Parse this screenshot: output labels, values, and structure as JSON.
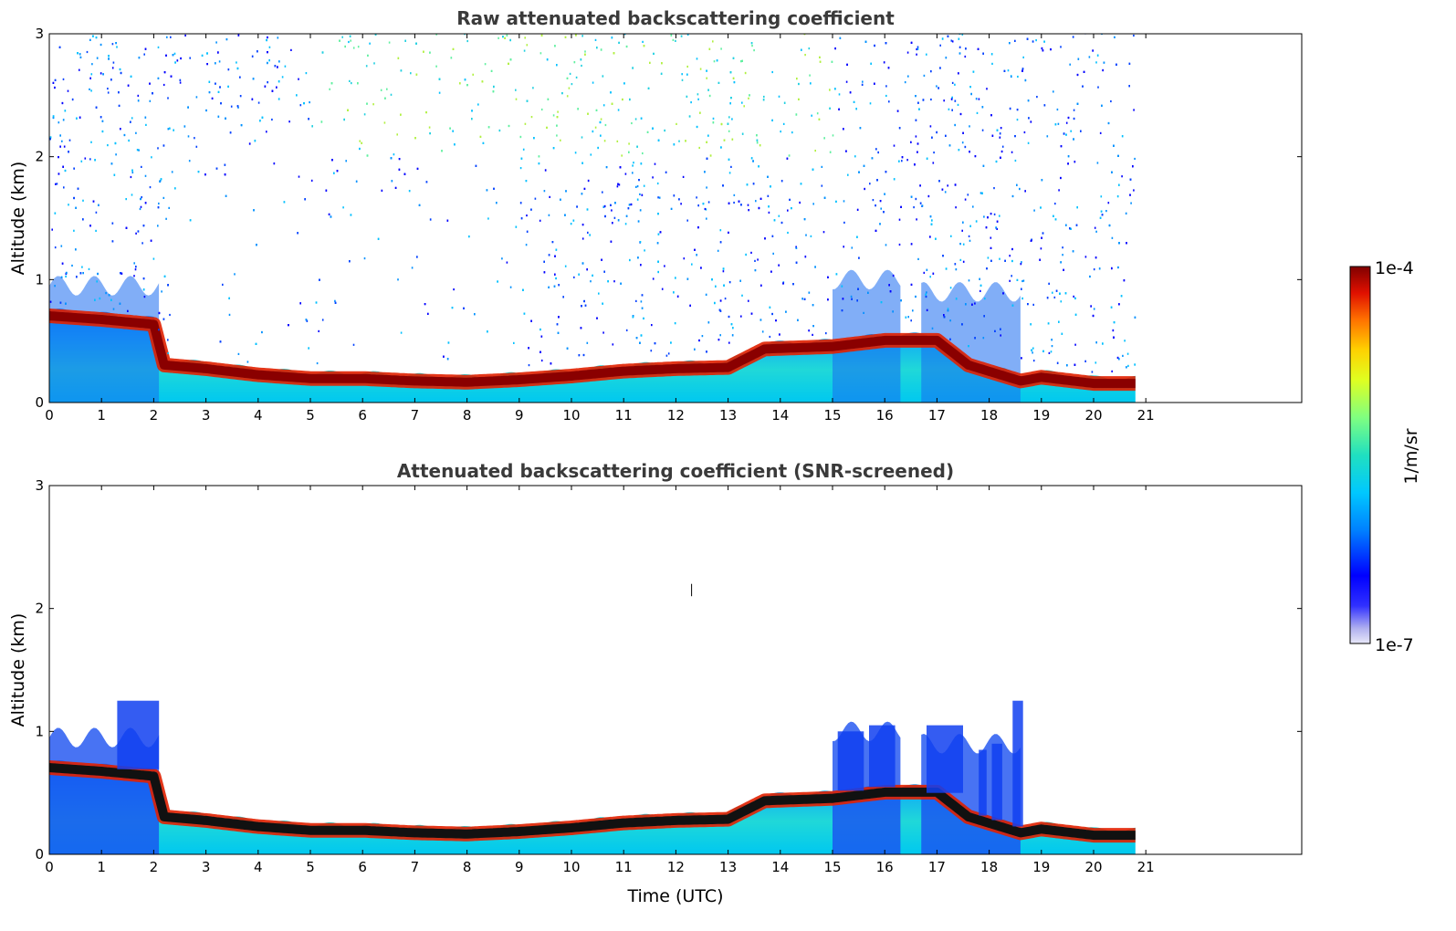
{
  "chart_data": [
    {
      "type": "heatmap",
      "title": "Raw attenuated backscattering coefficient",
      "xlabel": "",
      "ylabel": "Altitude (km)",
      "xlim": [
        0,
        24
      ],
      "ylim": [
        0,
        3
      ],
      "x_ticks": [
        "0",
        "1",
        "2",
        "3",
        "4",
        "5",
        "6",
        "7",
        "8",
        "9",
        "10",
        "11",
        "12",
        "13",
        "14",
        "15",
        "16",
        "17",
        "18",
        "19",
        "20",
        "21"
      ],
      "y_ticks": [
        "0",
        "1",
        "2",
        "3"
      ],
      "data_end_time": 20.8,
      "aerosol_layer_top_km": [
        {
          "t": 0,
          "z": 0.75
        },
        {
          "t": 1,
          "z": 0.72
        },
        {
          "t": 2.0,
          "z": 0.68
        },
        {
          "t": 2.2,
          "z": 0.35
        },
        {
          "t": 3,
          "z": 0.32
        },
        {
          "t": 4,
          "z": 0.27
        },
        {
          "t": 5,
          "z": 0.24
        },
        {
          "t": 6,
          "z": 0.24
        },
        {
          "t": 7,
          "z": 0.22
        },
        {
          "t": 8,
          "z": 0.21
        },
        {
          "t": 9,
          "z": 0.23
        },
        {
          "t": 10,
          "z": 0.26
        },
        {
          "t": 11,
          "z": 0.3
        },
        {
          "t": 12,
          "z": 0.32
        },
        {
          "t": 13,
          "z": 0.33
        },
        {
          "t": 13.7,
          "z": 0.48
        },
        {
          "t": 15,
          "z": 0.5
        },
        {
          "t": 16,
          "z": 0.55
        },
        {
          "t": 17,
          "z": 0.55
        },
        {
          "t": 17.6,
          "z": 0.35
        },
        {
          "t": 18.6,
          "z": 0.22
        },
        {
          "t": 19,
          "z": 0.25
        },
        {
          "t": 20,
          "z": 0.2
        },
        {
          "t": 20.8,
          "z": 0.2
        }
      ],
      "noise": "high above boundary layer, sparse speckle up to 3 km"
    },
    {
      "type": "heatmap",
      "title": "Attenuated backscattering coefficient (SNR-screened)",
      "xlabel": "Time (UTC)",
      "ylabel": "Altitude (km)",
      "xlim": [
        0,
        24
      ],
      "ylim": [
        0,
        3
      ],
      "x_ticks": [
        "0",
        "1",
        "2",
        "3",
        "4",
        "5",
        "6",
        "7",
        "8",
        "9",
        "10",
        "11",
        "12",
        "13",
        "14",
        "15",
        "16",
        "17",
        "18",
        "19",
        "20",
        "21"
      ],
      "y_ticks": [
        "0",
        "1",
        "2",
        "3"
      ],
      "data_end_time": 20.8,
      "noise": "screened; only signal below ~1.3 km retained"
    }
  ],
  "colorbar": {
    "label": "1/m/sr",
    "max_label": "1e-4",
    "min_label": "1e-7",
    "scale": "log",
    "colormap": "jet"
  }
}
